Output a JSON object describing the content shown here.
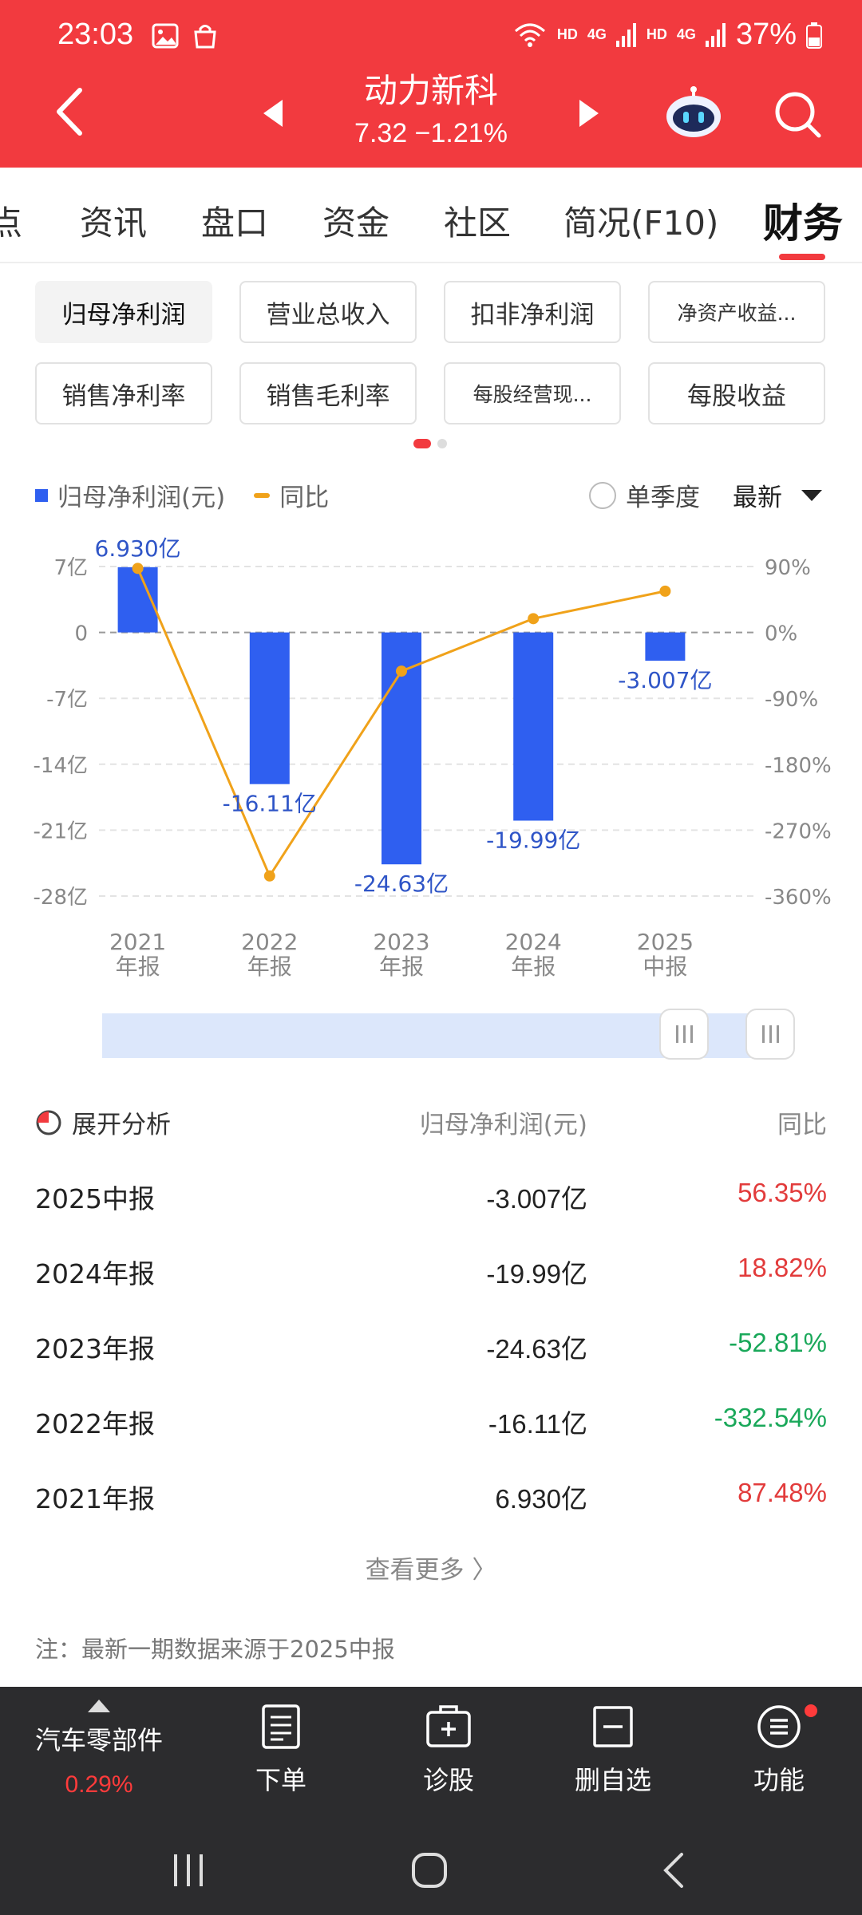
{
  "status_bar": {
    "time": "23:03",
    "battery": "37%",
    "hd1": "HD",
    "hd2": "HD",
    "net1": "4G",
    "net2": "4G",
    "icons": [
      "image-icon",
      "bag-icon",
      "wifi-icon",
      "signal-icon",
      "battery-icon"
    ]
  },
  "header": {
    "stock_name": "动力新科",
    "price_line": "7.32 −1.21%",
    "accent": "#f23a3f"
  },
  "tabs": [
    {
      "label": "点"
    },
    {
      "label": "资讯"
    },
    {
      "label": "盘口"
    },
    {
      "label": "资金"
    },
    {
      "label": "社区"
    },
    {
      "label": "简况(F10)"
    },
    {
      "label": "财务",
      "active": true
    }
  ],
  "metrics": [
    {
      "label": "归母净利润",
      "selected": true
    },
    {
      "label": "营业总收入"
    },
    {
      "label": "扣非净利润"
    },
    {
      "label": "净资产收益..."
    },
    {
      "label": "销售净利率"
    },
    {
      "label": "销售毛利率"
    },
    {
      "label": "每股经营现..."
    },
    {
      "label": "每股收益"
    }
  ],
  "legend": {
    "bar_label": "归母净利润(元)",
    "line_label": "同比",
    "single_quarter": "单季度",
    "latest": "最新"
  },
  "chart_data": {
    "type": "bar+line",
    "categories": [
      [
        "2021",
        "年报"
      ],
      [
        "2022",
        "年报"
      ],
      [
        "2023",
        "年报"
      ],
      [
        "2024",
        "年报"
      ],
      [
        "2025",
        "中报"
      ]
    ],
    "series": [
      {
        "name": "归母净利润(元)",
        "type": "bar",
        "values": [
          6.93,
          -16.11,
          -24.63,
          -19.99,
          -3.007
        ],
        "labels": [
          "6.930亿",
          "-16.11亿",
          "-24.63亿",
          "-19.99亿",
          "-3.007亿"
        ],
        "color": "#2f5ff0"
      },
      {
        "name": "同比",
        "type": "line",
        "values": [
          87.48,
          -332.54,
          -52.81,
          18.82,
          56.35
        ],
        "color": "#f0a21a"
      }
    ],
    "y_left": {
      "ticks": [
        7,
        0,
        -7,
        -14,
        -21,
        -28
      ],
      "tick_labels": [
        "7亿",
        "0",
        "-7亿",
        "-14亿",
        "-21亿",
        "-28亿"
      ],
      "ylim": [
        -28,
        7
      ]
    },
    "y_right": {
      "ticks": [
        90,
        0,
        -90,
        -180,
        -270,
        -360
      ],
      "tick_labels": [
        "90%",
        "0%",
        "-90%",
        "-180%",
        "-270%",
        "-360%"
      ],
      "ylim": [
        -360,
        90
      ]
    },
    "grid": true
  },
  "table": {
    "expand_label": "展开分析",
    "col_net": "归母净利润(元)",
    "col_yoy": "同比",
    "rows": [
      {
        "period": "2025中报",
        "value": "-3.007亿",
        "yoy": "56.35%",
        "dir": "up"
      },
      {
        "period": "2024年报",
        "value": "-19.99亿",
        "yoy": "18.82%",
        "dir": "up"
      },
      {
        "period": "2023年报",
        "value": "-24.63亿",
        "yoy": "-52.81%",
        "dir": "down"
      },
      {
        "period": "2022年报",
        "value": "-16.11亿",
        "yoy": "-332.54%",
        "dir": "down"
      },
      {
        "period": "2021年报",
        "value": "6.930亿",
        "yoy": "87.48%",
        "dir": "up"
      }
    ],
    "more": "查看更多 〉",
    "note": "注：最新一期数据来源于2025中报"
  },
  "bottom_bar": {
    "sector_name": "汽车零部件",
    "sector_change": "0.29%",
    "items": [
      {
        "label": "下单",
        "icon": "order-icon"
      },
      {
        "label": "诊股",
        "icon": "diagnose-icon"
      },
      {
        "label": "删自选",
        "icon": "remove-watchlist-icon"
      },
      {
        "label": "功能",
        "icon": "menu-icon"
      }
    ]
  }
}
